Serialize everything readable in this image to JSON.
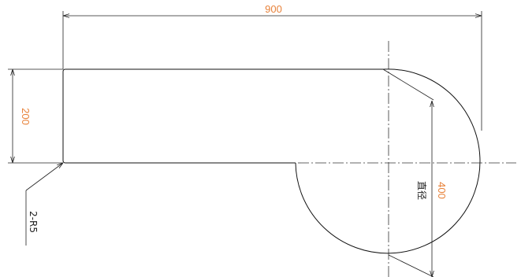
{
  "dimensions": {
    "overall_length": "900",
    "height": "200",
    "diameter": "400",
    "diameter_label": "直径"
  },
  "callout": {
    "fillet_note": "2-R5"
  },
  "colors": {
    "dimension_text": "#e8823a",
    "geometry": "#111111"
  }
}
